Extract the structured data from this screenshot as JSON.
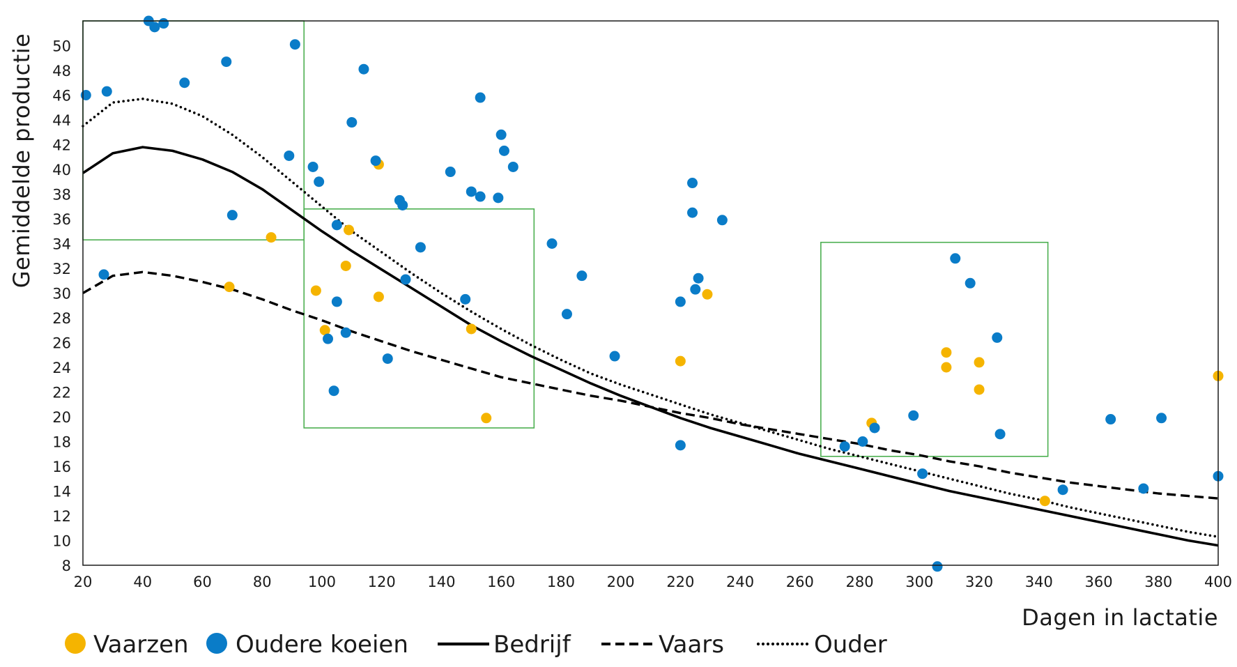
{
  "chart_data": {
    "type": "scatter",
    "xlabel": "Dagen in lactatie",
    "ylabel": "Gemiddelde productie",
    "xlim": [
      20,
      400
    ],
    "ylim": [
      8,
      52
    ],
    "x_ticks": [
      20,
      40,
      60,
      80,
      100,
      120,
      140,
      160,
      180,
      200,
      220,
      240,
      260,
      280,
      300,
      320,
      340,
      360,
      380,
      400
    ],
    "y_ticks": [
      8,
      10,
      12,
      14,
      16,
      18,
      20,
      22,
      24,
      26,
      28,
      30,
      32,
      34,
      36,
      38,
      40,
      42,
      44,
      46,
      48,
      50
    ],
    "grid": false,
    "legend_position": "bottom",
    "colors": {
      "vaarzen": "#F5B400",
      "oudere": "#0A7CC8",
      "line": "#000000",
      "box": "#4CAF50"
    },
    "scatter_series": [
      {
        "name": "Vaarzen",
        "color": "#F5B400",
        "points": [
          [
            69,
            30.5
          ],
          [
            83,
            34.5
          ],
          [
            98,
            30.2
          ],
          [
            101,
            27.0
          ],
          [
            108,
            32.2
          ],
          [
            109,
            35.1
          ],
          [
            119,
            40.4
          ],
          [
            119,
            29.7
          ],
          [
            150,
            27.1
          ],
          [
            155,
            19.9
          ],
          [
            229,
            29.9
          ],
          [
            220,
            24.5
          ],
          [
            284,
            19.5
          ],
          [
            309,
            25.2
          ],
          [
            309,
            24.0
          ],
          [
            320,
            24.4
          ],
          [
            320,
            22.2
          ],
          [
            342,
            13.2
          ],
          [
            400,
            23.3
          ]
        ]
      },
      {
        "name": "Oudere koeien",
        "color": "#0A7CC8",
        "points": [
          [
            21,
            46.0
          ],
          [
            27,
            31.5
          ],
          [
            28,
            46.3
          ],
          [
            42,
            52.0
          ],
          [
            44,
            51.5
          ],
          [
            47,
            51.8
          ],
          [
            54,
            47.0
          ],
          [
            68,
            48.7
          ],
          [
            70,
            36.3
          ],
          [
            89,
            41.1
          ],
          [
            91,
            50.1
          ],
          [
            97,
            40.2
          ],
          [
            99,
            39.0
          ],
          [
            102,
            26.3
          ],
          [
            104,
            22.1
          ],
          [
            105,
            35.5
          ],
          [
            105,
            29.3
          ],
          [
            108,
            26.8
          ],
          [
            110,
            43.8
          ],
          [
            114,
            48.1
          ],
          [
            118,
            40.7
          ],
          [
            122,
            24.7
          ],
          [
            126,
            37.5
          ],
          [
            127,
            37.1
          ],
          [
            128,
            31.1
          ],
          [
            133,
            33.7
          ],
          [
            143,
            39.8
          ],
          [
            148,
            29.5
          ],
          [
            150,
            38.2
          ],
          [
            153,
            37.8
          ],
          [
            153,
            45.8
          ],
          [
            159,
            37.7
          ],
          [
            160,
            42.8
          ],
          [
            161,
            41.5
          ],
          [
            164,
            40.2
          ],
          [
            177,
            34.0
          ],
          [
            182,
            28.3
          ],
          [
            187,
            31.4
          ],
          [
            198,
            24.9
          ],
          [
            220,
            29.3
          ],
          [
            220,
            17.7
          ],
          [
            224,
            38.9
          ],
          [
            224,
            36.5
          ],
          [
            225,
            30.3
          ],
          [
            226,
            31.2
          ],
          [
            234,
            35.9
          ],
          [
            275,
            17.6
          ],
          [
            281,
            18.0
          ],
          [
            285,
            19.1
          ],
          [
            298,
            20.1
          ],
          [
            301,
            15.4
          ],
          [
            306,
            7.9
          ],
          [
            312,
            32.8
          ],
          [
            317,
            30.8
          ],
          [
            326,
            26.4
          ],
          [
            327,
            18.6
          ],
          [
            348,
            14.1
          ],
          [
            364,
            19.8
          ],
          [
            375,
            14.2
          ],
          [
            381,
            19.9
          ],
          [
            400,
            15.2
          ]
        ]
      }
    ],
    "line_series": [
      {
        "name": "Bedrijf",
        "style": "solid",
        "x": [
          20,
          30,
          40,
          50,
          60,
          70,
          80,
          90,
          100,
          110,
          120,
          130,
          140,
          150,
          160,
          170,
          180,
          190,
          200,
          210,
          220,
          230,
          240,
          250,
          260,
          270,
          280,
          290,
          300,
          310,
          320,
          330,
          340,
          350,
          360,
          370,
          380,
          390,
          400
        ],
        "y": [
          39.7,
          41.3,
          41.8,
          41.5,
          40.8,
          39.8,
          38.4,
          36.7,
          35.0,
          33.4,
          31.9,
          30.4,
          28.9,
          27.4,
          26.1,
          24.9,
          23.8,
          22.7,
          21.7,
          20.8,
          19.9,
          19.1,
          18.4,
          17.7,
          17.0,
          16.4,
          15.8,
          15.2,
          14.6,
          14.0,
          13.5,
          13.0,
          12.5,
          12.0,
          11.5,
          11.0,
          10.5,
          10.0,
          9.6
        ]
      },
      {
        "name": "Vaars",
        "style": "dashed",
        "x": [
          20,
          30,
          40,
          50,
          60,
          70,
          80,
          90,
          100,
          110,
          120,
          130,
          140,
          150,
          160,
          170,
          180,
          190,
          200,
          210,
          220,
          230,
          240,
          250,
          260,
          270,
          280,
          290,
          300,
          310,
          320,
          330,
          340,
          350,
          360,
          370,
          380,
          390,
          400
        ],
        "y": [
          30.0,
          31.4,
          31.7,
          31.4,
          30.9,
          30.3,
          29.5,
          28.6,
          27.8,
          26.9,
          26.1,
          25.3,
          24.6,
          23.9,
          23.2,
          22.7,
          22.2,
          21.7,
          21.3,
          20.8,
          20.3,
          19.9,
          19.4,
          19.0,
          18.6,
          18.2,
          17.8,
          17.3,
          16.9,
          16.4,
          16.0,
          15.5,
          15.1,
          14.7,
          14.4,
          14.1,
          13.8,
          13.6,
          13.4
        ]
      },
      {
        "name": "Ouder",
        "style": "dotted",
        "x": [
          20,
          30,
          40,
          50,
          60,
          70,
          80,
          90,
          100,
          110,
          120,
          130,
          140,
          150,
          160,
          170,
          180,
          190,
          200,
          210,
          220,
          230,
          240,
          250,
          260,
          270,
          280,
          290,
          300,
          310,
          320,
          330,
          340,
          350,
          360,
          370,
          380,
          390,
          400
        ],
        "y": [
          43.5,
          45.4,
          45.7,
          45.3,
          44.3,
          42.8,
          41.0,
          39.0,
          37.0,
          35.0,
          33.3,
          31.6,
          30.0,
          28.5,
          27.1,
          25.8,
          24.6,
          23.5,
          22.6,
          21.8,
          21.0,
          20.2,
          19.5,
          18.8,
          18.1,
          17.4,
          16.8,
          16.2,
          15.6,
          15.0,
          14.4,
          13.8,
          13.3,
          12.7,
          12.2,
          11.7,
          11.2,
          10.7,
          10.3
        ]
      }
    ],
    "boxes": [
      {
        "x": [
          20,
          94
        ],
        "y": [
          34.3,
          52
        ]
      },
      {
        "x": [
          94,
          171
        ],
        "y": [
          19.1,
          36.8
        ]
      },
      {
        "x": [
          267,
          343
        ],
        "y": [
          16.8,
          34.1
        ]
      }
    ],
    "legend": [
      {
        "label": "Vaarzen",
        "kind": "dot",
        "color": "#F5B400"
      },
      {
        "label": "Oudere koeien",
        "kind": "dot",
        "color": "#0A7CC8"
      },
      {
        "label": "Bedrijf",
        "kind": "solid"
      },
      {
        "label": "Vaars",
        "kind": "dashed"
      },
      {
        "label": "Ouder",
        "kind": "dotted"
      }
    ]
  }
}
